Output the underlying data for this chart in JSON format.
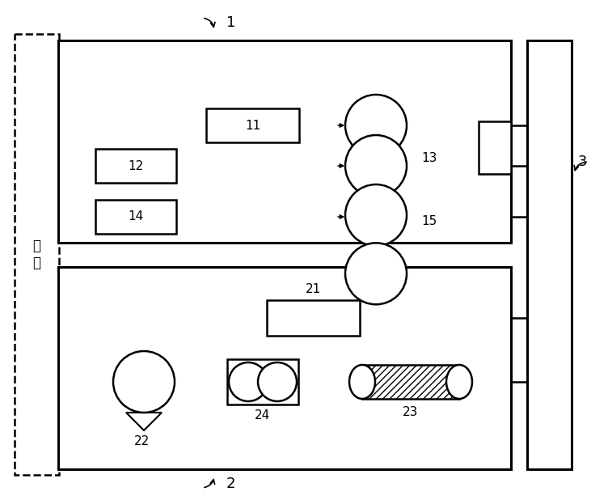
{
  "fig_width": 7.52,
  "fig_height": 6.23,
  "bg_color": "#ffffff",
  "lc": "#000000",
  "label_1": "1",
  "label_2": "2",
  "label_3": "3",
  "label_11": "11",
  "label_12": "12",
  "label_13": "13",
  "label_14": "14",
  "label_15": "15",
  "label_21": "21",
  "label_22": "22",
  "label_23": "23",
  "label_24": "24",
  "air_label": "空\n气"
}
